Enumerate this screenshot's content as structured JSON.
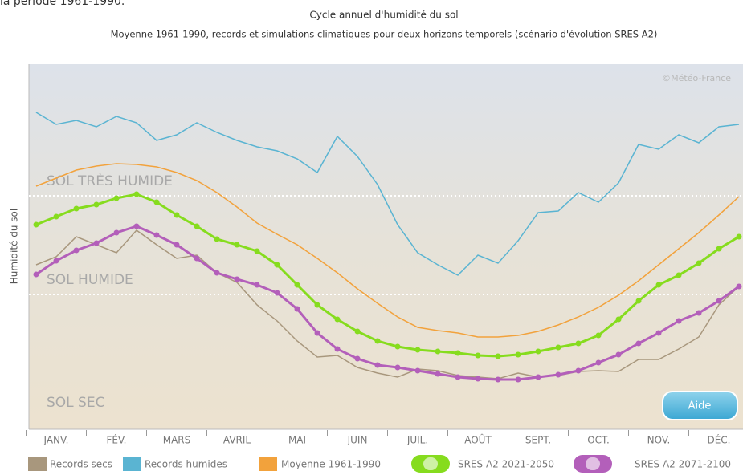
{
  "caption_fragment": "la période 1961-1990.",
  "chart_data": {
    "type": "line",
    "title": "Cycle annuel d'humidité du sol",
    "subtitle": "Moyenne 1961-1990, records et simulations climatiques pour deux horizons temporels (scénario d'évolution SRES A2)",
    "ylabel": "Humidité du sol",
    "credit": "©Météo-France",
    "button": "Aide",
    "categories": [
      null,
      "JANV.",
      null,
      null,
      "FÉV.",
      null,
      null,
      "MARS",
      null,
      null,
      "AVRIL",
      null,
      null,
      "MAI",
      null,
      null,
      "JUIN",
      null,
      null,
      "JUIL.",
      null,
      null,
      "AOÛT",
      null,
      null,
      "SEPT.",
      null,
      null,
      "OCT.",
      null,
      null,
      "NOV.",
      null,
      null,
      "DÉC.",
      null
    ],
    "ylim": [
      0,
      455
    ],
    "thresholds": [
      291,
      168
    ],
    "zones": [
      "SOL TRÈS HUMIDE",
      "SOL HUMIDE",
      "SOL SEC"
    ],
    "series": [
      {
        "name": "Records secs",
        "color": "#a8977d",
        "markers": false,
        "values": [
          205,
          215,
          240,
          230,
          220,
          248,
          230,
          213,
          217,
          195,
          183,
          155,
          135,
          110,
          90,
          92,
          77,
          70,
          65,
          75,
          73,
          67,
          65,
          63,
          70,
          65,
          67,
          72,
          73,
          72,
          87,
          87,
          100,
          115,
          155,
          178
        ]
      },
      {
        "name": "Records humides",
        "color": "#5ab4d2",
        "markers": false,
        "values": [
          395,
          380,
          385,
          377,
          390,
          382,
          360,
          367,
          382,
          370,
          360,
          352,
          347,
          337,
          320,
          365,
          340,
          305,
          255,
          220,
          205,
          192,
          217,
          207,
          235,
          270,
          272,
          295,
          283,
          307,
          355,
          349,
          367,
          357,
          377,
          380
        ]
      },
      {
        "name": "Moyenne 1961-1990",
        "color": "#f2a23c",
        "markers": false,
        "values": [
          303,
          313,
          323,
          328,
          331,
          330,
          327,
          320,
          310,
          295,
          277,
          257,
          243,
          230,
          213,
          195,
          175,
          157,
          140,
          127,
          123,
          120,
          115,
          115,
          117,
          122,
          130,
          140,
          152,
          167,
          185,
          205,
          225,
          245,
          267,
          290
        ]
      },
      {
        "name": "SRES A2 2021-2050",
        "color": "#86dc1e",
        "markers": true,
        "values": [
          255,
          265,
          275,
          280,
          288,
          293,
          283,
          267,
          253,
          237,
          230,
          222,
          205,
          180,
          155,
          137,
          122,
          110,
          103,
          99,
          97,
          95,
          92,
          91,
          93,
          97,
          102,
          107,
          117,
          137,
          160,
          180,
          192,
          207,
          225,
          240
        ]
      },
      {
        "name": "SRES A2 2071-2100",
        "color": "#b35fba",
        "markers": true,
        "values": [
          193,
          210,
          223,
          232,
          245,
          253,
          242,
          230,
          213,
          195,
          187,
          180,
          170,
          150,
          120,
          100,
          88,
          80,
          77,
          73,
          69,
          65,
          63,
          62,
          62,
          65,
          68,
          73,
          83,
          93,
          107,
          120,
          135,
          145,
          160,
          178
        ]
      }
    ]
  }
}
